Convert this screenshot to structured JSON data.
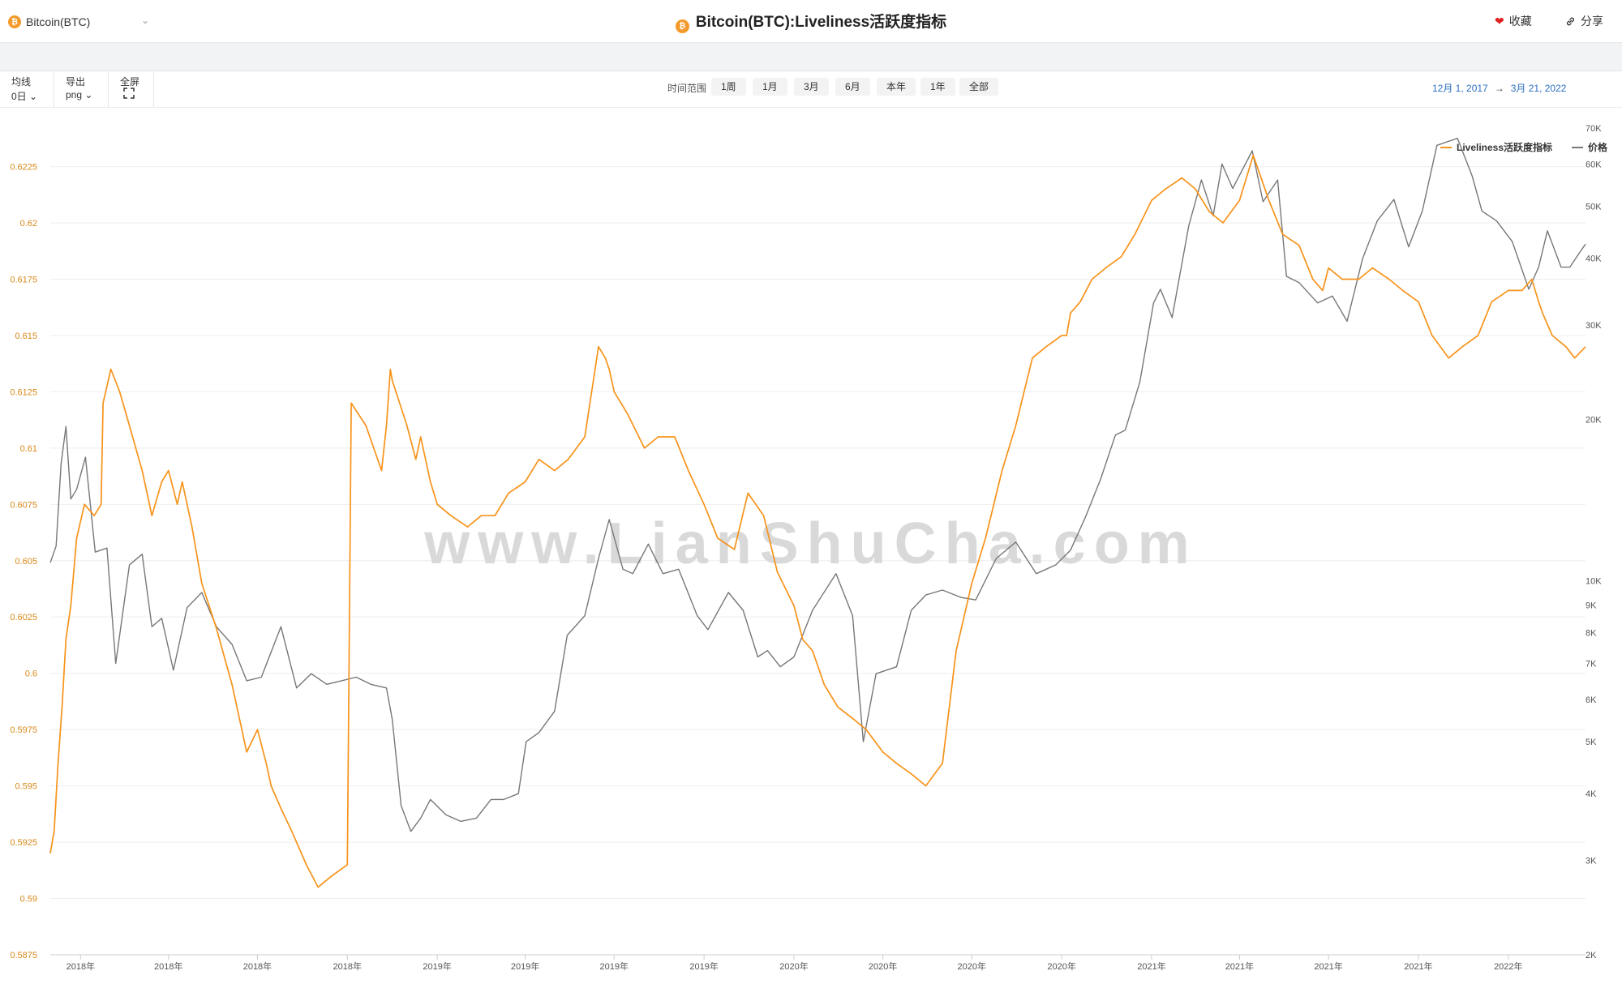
{
  "header": {
    "coin_label": "Bitcoin(BTC)",
    "coin_icon": "bitcoin-icon",
    "title": "Bitcoin(BTC):Liveliness活跃度指标",
    "favorite_label": "收藏",
    "share_label": "分享"
  },
  "toolbar": {
    "ma_label": "均线",
    "ma_value": "0日",
    "export_label": "导出",
    "export_value": "png",
    "fullscreen_label": "全屏"
  },
  "range": {
    "label": "时间范围",
    "buttons": [
      "1周",
      "1月",
      "3月",
      "6月",
      "本年",
      "1年",
      "全部"
    ],
    "start": "12月 1, 2017",
    "arrow": "→",
    "end": "3月 21, 2022"
  },
  "watermark": "www.LianShuCha.com",
  "colors": {
    "liveliness": "#f7931a",
    "price": "#777777",
    "accent": "#f39a2b",
    "link": "#2d6fbf"
  },
  "chart_data": {
    "type": "line",
    "title": "Bitcoin(BTC):Liveliness活跃度指标",
    "legend": [
      "Liveliness活跃度指标",
      "价格"
    ],
    "legend_position": "top-right",
    "y_left_ticks": [
      "0.5875",
      "0.59",
      "0.5925",
      "0.595",
      "0.5975",
      "0.6",
      "0.6025",
      "0.605",
      "0.6075",
      "0.61",
      "0.6125",
      "0.615",
      "0.6175",
      "0.62",
      "0.6225"
    ],
    "ylim_left": [
      0.5875,
      0.6245
    ],
    "y_right_ticks": [
      "2K",
      "3K",
      "4K",
      "5K",
      "6K",
      "7K",
      "8K",
      "9K",
      "10K",
      "20K",
      "30K",
      "40K",
      "50K",
      "60K",
      "70K"
    ],
    "ylim_right": [
      2000,
      72000
    ],
    "y_right_scale": "log",
    "x_tick_labels": [
      "2018年",
      "2018年",
      "2018年",
      "2018年",
      "2019年",
      "2019年",
      "2019年",
      "2019年",
      "2020年",
      "2020年",
      "2020年",
      "2020年",
      "2021年",
      "2021年",
      "2021年",
      "2021年",
      "2022年"
    ],
    "x_tick_dates": [
      "2018-01-01",
      "2018-04-01",
      "2018-07-01",
      "2018-10-01",
      "2019-01-01",
      "2019-04-01",
      "2019-07-01",
      "2019-10-01",
      "2020-01-01",
      "2020-04-01",
      "2020-07-01",
      "2020-10-01",
      "2021-01-01",
      "2021-04-01",
      "2021-07-01",
      "2021-10-01",
      "2022-01-01"
    ],
    "x_range": [
      "2017-12-01",
      "2022-03-21"
    ],
    "grid": true,
    "series": [
      {
        "name": "Liveliness活跃度指标",
        "axis": "left",
        "color": "#f7931a",
        "x": [
          "2017-12-01",
          "2017-12-05",
          "2017-12-09",
          "2017-12-13",
          "2017-12-17",
          "2017-12-22",
          "2017-12-28",
          "2018-01-05",
          "2018-01-15",
          "2018-01-22",
          "2018-01-24",
          "2018-02-01",
          "2018-02-10",
          "2018-02-20",
          "2018-03-05",
          "2018-03-15",
          "2018-03-25",
          "2018-04-01",
          "2018-04-10",
          "2018-04-15",
          "2018-04-25",
          "2018-05-05",
          "2018-05-20",
          "2018-06-05",
          "2018-06-20",
          "2018-07-01",
          "2018-07-10",
          "2018-07-15",
          "2018-07-25",
          "2018-08-05",
          "2018-08-20",
          "2018-09-01",
          "2018-09-15",
          "2018-10-01",
          "2018-10-05",
          "2018-10-20",
          "2018-11-05",
          "2018-11-10",
          "2018-11-14",
          "2018-11-16",
          "2018-12-01",
          "2018-12-10",
          "2018-12-15",
          "2018-12-25",
          "2019-01-01",
          "2019-01-15",
          "2019-02-01",
          "2019-02-15",
          "2019-03-01",
          "2019-03-15",
          "2019-04-01",
          "2019-04-15",
          "2019-05-01",
          "2019-05-15",
          "2019-06-01",
          "2019-06-15",
          "2019-06-22",
          "2019-06-26",
          "2019-07-01",
          "2019-07-15",
          "2019-08-01",
          "2019-08-15",
          "2019-09-01",
          "2019-09-15",
          "2019-10-01",
          "2019-10-15",
          "2019-11-01",
          "2019-11-15",
          "2019-12-01",
          "2019-12-15",
          "2020-01-01",
          "2020-01-10",
          "2020-01-20",
          "2020-02-01",
          "2020-02-15",
          "2020-03-01",
          "2020-03-15",
          "2020-04-01",
          "2020-04-15",
          "2020-05-01",
          "2020-05-15",
          "2020-06-01",
          "2020-06-15",
          "2020-07-01",
          "2020-07-15",
          "2020-08-01",
          "2020-08-15",
          "2020-09-01",
          "2020-09-15",
          "2020-10-01",
          "2020-10-06",
          "2020-10-10",
          "2020-10-20",
          "2020-11-01",
          "2020-11-15",
          "2020-12-01",
          "2020-12-15",
          "2021-01-01",
          "2021-01-15",
          "2021-02-01",
          "2021-02-15",
          "2021-03-01",
          "2021-03-15",
          "2021-04-01",
          "2021-04-15",
          "2021-05-01",
          "2021-05-15",
          "2021-06-01",
          "2021-06-15",
          "2021-06-25",
          "2021-07-01",
          "2021-07-15",
          "2021-08-01",
          "2021-08-15",
          "2021-09-01",
          "2021-09-15",
          "2021-10-01",
          "2021-10-15",
          "2021-11-01",
          "2021-11-15",
          "2021-12-01",
          "2021-12-15",
          "2022-01-01",
          "2022-01-15",
          "2022-01-25",
          "2022-02-01",
          "2022-02-05",
          "2022-02-15",
          "2022-03-01",
          "2022-03-10",
          "2022-03-21"
        ],
        "values": [
          0.592,
          0.593,
          0.596,
          0.5985,
          0.6015,
          0.603,
          0.606,
          0.6075,
          0.607,
          0.6075,
          0.612,
          0.6135,
          0.6125,
          0.611,
          0.609,
          0.607,
          0.6085,
          0.609,
          0.6075,
          0.6085,
          0.6065,
          0.604,
          0.602,
          0.5995,
          0.5965,
          0.5975,
          0.596,
          0.595,
          0.594,
          0.593,
          0.5915,
          0.5905,
          0.591,
          0.5915,
          0.612,
          0.611,
          0.609,
          0.611,
          0.6135,
          0.613,
          0.611,
          0.6095,
          0.6105,
          0.6085,
          0.6075,
          0.607,
          0.6065,
          0.607,
          0.607,
          0.608,
          0.6085,
          0.6095,
          0.609,
          0.6095,
          0.6105,
          0.6145,
          0.614,
          0.6135,
          0.6125,
          0.6115,
          0.61,
          0.6105,
          0.6105,
          0.609,
          0.6075,
          0.606,
          0.6055,
          0.608,
          0.607,
          0.6045,
          0.603,
          0.6015,
          0.601,
          0.5995,
          0.5985,
          0.598,
          0.5975,
          0.5965,
          0.596,
          0.5955,
          0.595,
          0.596,
          0.601,
          0.604,
          0.606,
          0.609,
          0.611,
          0.614,
          0.6145,
          0.615,
          0.615,
          0.616,
          0.6165,
          0.6175,
          0.618,
          0.6185,
          0.6195,
          0.621,
          0.6215,
          0.622,
          0.6215,
          0.6205,
          0.62,
          0.621,
          0.623,
          0.621,
          0.6195,
          0.619,
          0.6175,
          0.617,
          0.618,
          0.6175,
          0.6175,
          0.618,
          0.6175,
          0.617,
          0.6165,
          0.615,
          0.614,
          0.6145,
          0.615,
          0.6165,
          0.617,
          0.617,
          0.6175,
          0.6165,
          0.616,
          0.615,
          0.6145,
          0.614,
          0.6145
        ]
      },
      {
        "name": "价格",
        "axis": "right",
        "color": "#777777",
        "x": [
          "2017-12-01",
          "2017-12-07",
          "2017-12-12",
          "2017-12-17",
          "2017-12-22",
          "2017-12-28",
          "2018-01-06",
          "2018-01-16",
          "2018-01-28",
          "2018-02-06",
          "2018-02-20",
          "2018-03-05",
          "2018-03-15",
          "2018-03-25",
          "2018-04-06",
          "2018-04-20",
          "2018-05-05",
          "2018-05-20",
          "2018-06-05",
          "2018-06-20",
          "2018-07-05",
          "2018-07-25",
          "2018-08-10",
          "2018-08-25",
          "2018-09-10",
          "2018-09-25",
          "2018-10-10",
          "2018-10-25",
          "2018-11-10",
          "2018-11-16",
          "2018-11-25",
          "2018-12-05",
          "2018-12-15",
          "2018-12-25",
          "2019-01-10",
          "2019-01-25",
          "2019-02-10",
          "2019-02-25",
          "2019-03-10",
          "2019-03-25",
          "2019-04-02",
          "2019-04-15",
          "2019-05-01",
          "2019-05-14",
          "2019-06-01",
          "2019-06-15",
          "2019-06-26",
          "2019-07-10",
          "2019-07-20",
          "2019-08-05",
          "2019-08-20",
          "2019-09-05",
          "2019-09-24",
          "2019-10-05",
          "2019-10-26",
          "2019-11-10",
          "2019-11-25",
          "2019-12-05",
          "2019-12-18",
          "2020-01-01",
          "2020-01-20",
          "2020-02-13",
          "2020-03-01",
          "2020-03-12",
          "2020-03-25",
          "2020-04-15",
          "2020-04-30",
          "2020-05-15",
          "2020-06-01",
          "2020-06-20",
          "2020-07-05",
          "2020-07-26",
          "2020-08-15",
          "2020-09-05",
          "2020-09-25",
          "2020-10-10",
          "2020-10-25",
          "2020-11-10",
          "2020-11-25",
          "2020-12-05",
          "2020-12-20",
          "2021-01-03",
          "2021-01-10",
          "2021-01-22",
          "2021-02-08",
          "2021-02-21",
          "2021-03-05",
          "2021-03-14",
          "2021-03-25",
          "2021-04-14",
          "2021-04-25",
          "2021-05-10",
          "2021-05-19",
          "2021-06-01",
          "2021-06-20",
          "2021-07-05",
          "2021-07-20",
          "2021-08-05",
          "2021-08-20",
          "2021-09-06",
          "2021-09-21",
          "2021-10-05",
          "2021-10-20",
          "2021-11-10",
          "2021-11-25",
          "2021-12-05",
          "2021-12-20",
          "2022-01-05",
          "2022-01-22",
          "2022-02-01",
          "2022-02-10",
          "2022-02-24",
          "2022-03-05",
          "2022-03-15",
          "2022-03-21"
        ],
        "values": [
          10800,
          11600,
          16500,
          19400,
          14200,
          14800,
          17000,
          11300,
          11500,
          7000,
          10700,
          11200,
          8200,
          8500,
          6800,
          8900,
          9500,
          8200,
          7600,
          6500,
          6600,
          8200,
          6300,
          6700,
          6400,
          6500,
          6600,
          6400,
          6300,
          5500,
          3800,
          3400,
          3600,
          3900,
          3650,
          3550,
          3600,
          3900,
          3900,
          4000,
          5000,
          5200,
          5700,
          7900,
          8600,
          11000,
          13000,
          10500,
          10300,
          11700,
          10300,
          10500,
          8600,
          8100,
          9500,
          8800,
          7200,
          7400,
          6900,
          7200,
          8800,
          10300,
          8600,
          5000,
          6700,
          6900,
          8800,
          9400,
          9600,
          9300,
          9200,
          11000,
          11800,
          10300,
          10700,
          11400,
          13100,
          15500,
          18700,
          19100,
          23500,
          33000,
          35000,
          31000,
          46000,
          56000,
          48000,
          60000,
          54000,
          63500,
          51000,
          56000,
          37000,
          36000,
          33000,
          34000,
          30500,
          40000,
          47000,
          51500,
          42000,
          49000,
          65000,
          67000,
          57000,
          49000,
          47000,
          43000,
          35000,
          38500,
          45000,
          38500,
          38500,
          41000,
          42500
        ]
      }
    ]
  }
}
